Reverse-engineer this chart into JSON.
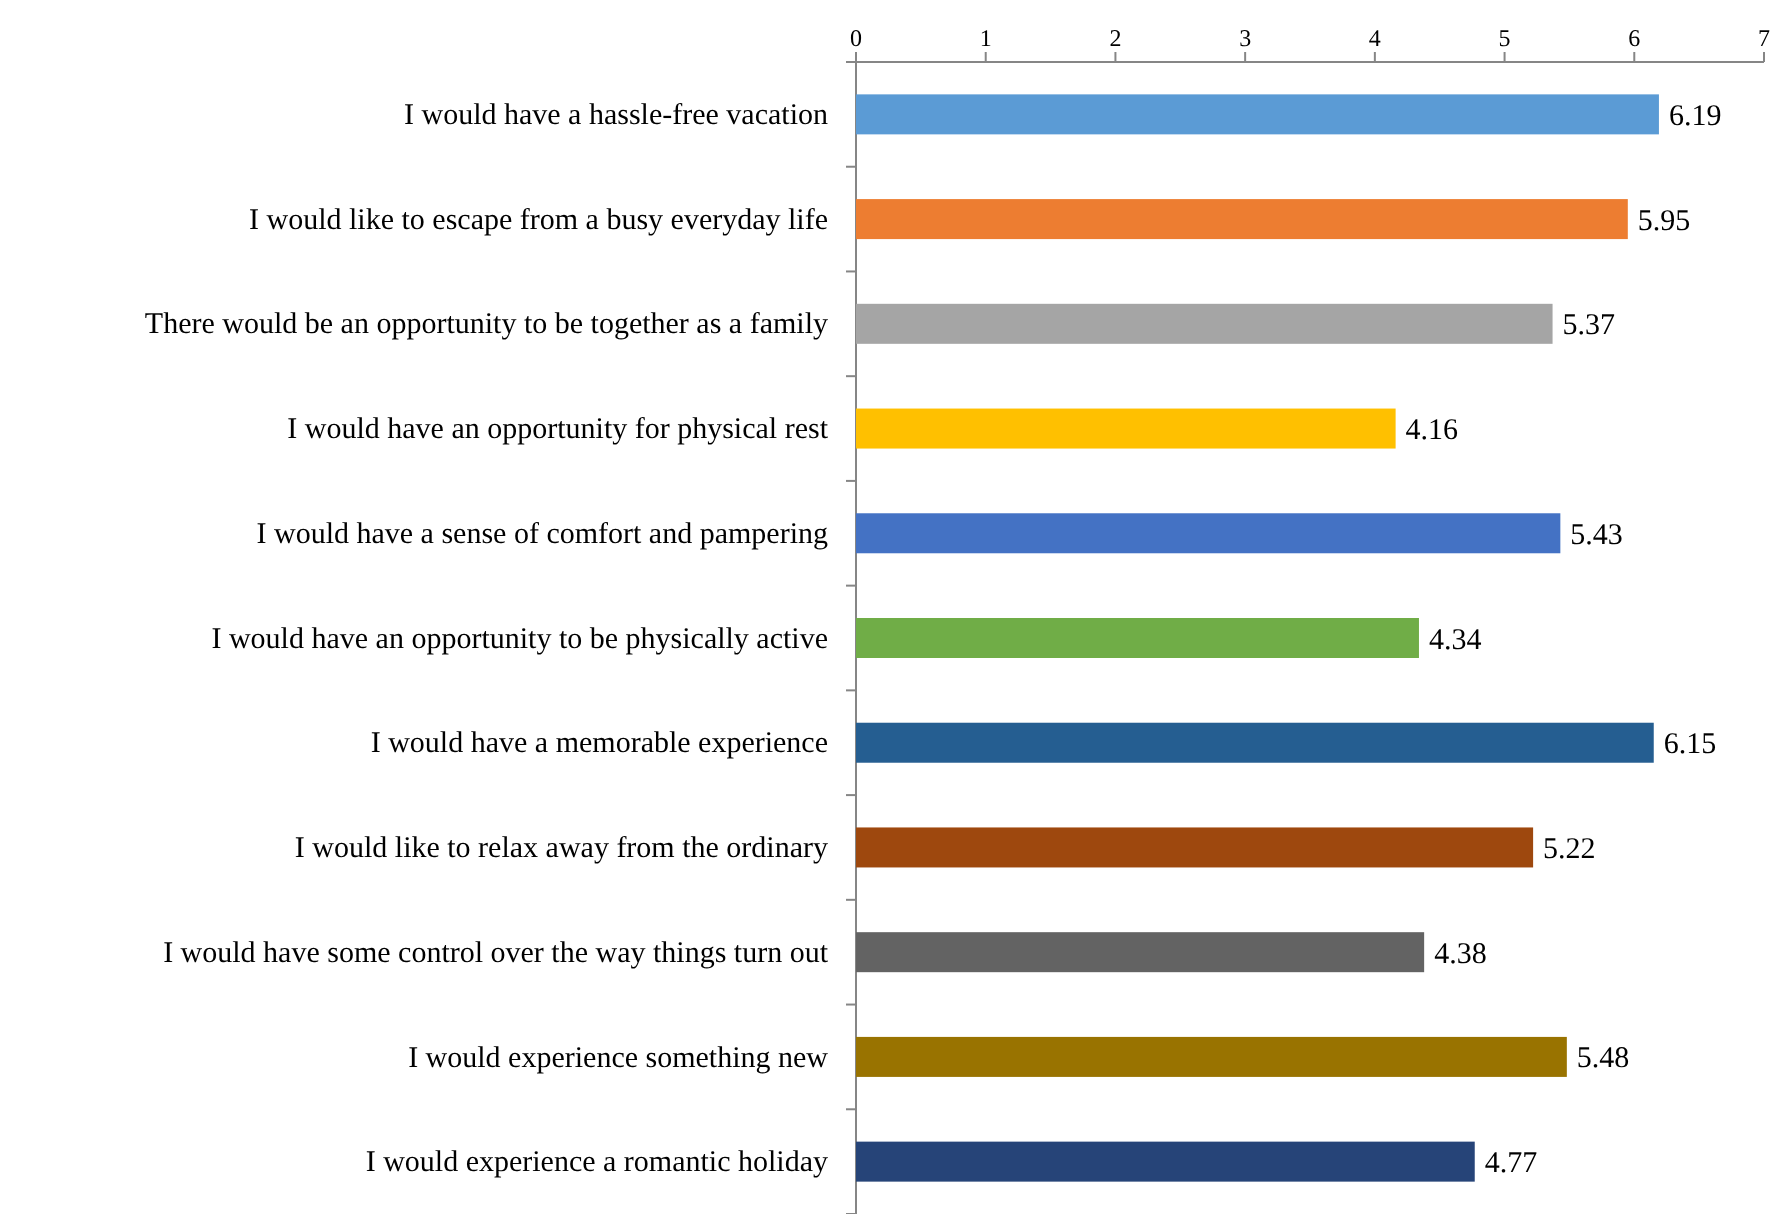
{
  "chart_data": {
    "type": "bar",
    "orientation": "horizontal",
    "categories": [
      "I would have a hassle-free vacation",
      "I would like to escape from a busy everyday life",
      "There would be an opportunity to be together as a family",
      "I would have an opportunity for physical rest",
      "I would have a sense of comfort and pampering",
      "I would have an opportunity to be physically active",
      "I would have a memorable experience",
      "I would like to relax away from the ordinary",
      "I would have some control over the way things turn out",
      "I would experience something new",
      "I would experience a romantic holiday"
    ],
    "values": [
      6.19,
      5.95,
      5.37,
      4.16,
      5.43,
      4.34,
      6.15,
      5.22,
      4.38,
      5.48,
      4.77
    ],
    "colors": [
      "#5b9bd5",
      "#ed7d31",
      "#a5a5a5",
      "#ffc000",
      "#4472c4",
      "#70ad47",
      "#255e91",
      "#9e480e",
      "#636363",
      "#997300",
      "#264478"
    ],
    "xlim": [
      0,
      7
    ],
    "xticks": [
      0,
      1,
      2,
      3,
      4,
      5,
      6,
      7
    ],
    "data_labels": true
  }
}
